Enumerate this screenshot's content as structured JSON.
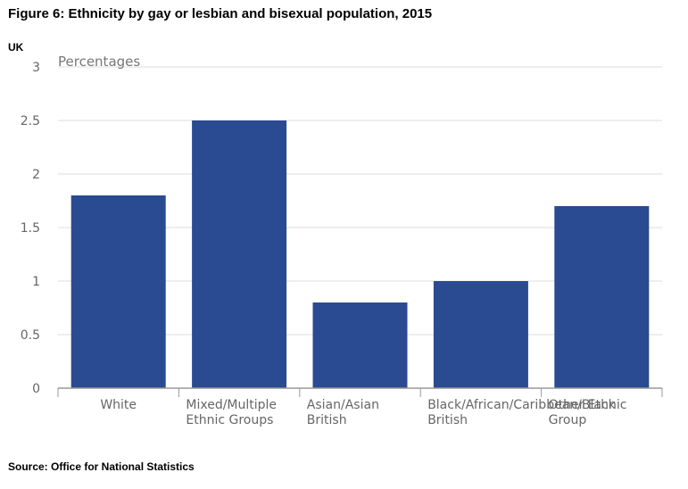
{
  "title": "Figure 6: Ethnicity by gay or lesbian and bisexual population, 2015",
  "region": "UK",
  "source": "Source: Office for National Statistics",
  "chart_data": {
    "type": "bar",
    "ylabel": "Percentages",
    "categories": [
      [
        "White"
      ],
      [
        "Mixed/Multiple",
        "Ethnic Groups"
      ],
      [
        "Asian/Asian",
        "British"
      ],
      [
        "Black/African/Caribbean/Black",
        "British"
      ],
      [
        "Other Ethnic",
        "Group"
      ]
    ],
    "values": [
      1.8,
      2.5,
      0.8,
      1.0,
      1.7
    ],
    "yticks": [
      "0",
      "0.5",
      "1",
      "1.5",
      "2",
      "2.5",
      "3"
    ],
    "ylim": [
      0,
      3
    ],
    "grid": true,
    "bar_color": "#2a4a91"
  }
}
